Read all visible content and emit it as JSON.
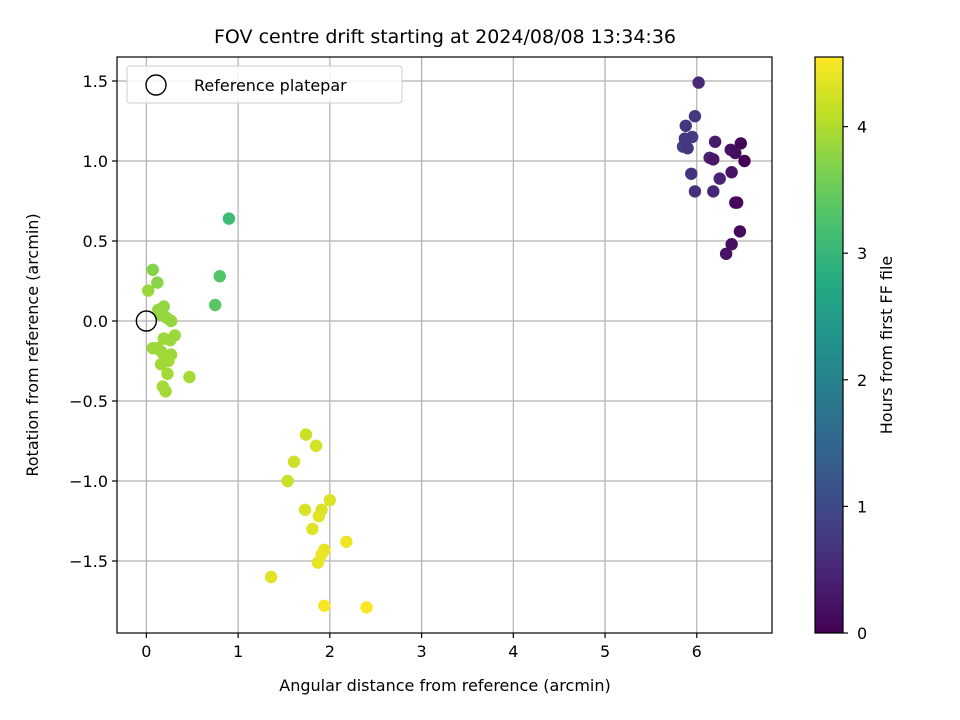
{
  "chart_data": {
    "type": "scatter",
    "title": "FOV centre drift starting at 2024/08/08 13:34:36",
    "xlabel": "Angular distance from reference (arcmin)",
    "ylabel": "Rotation from reference (arcmin)",
    "xlim": [
      -0.32,
      6.82
    ],
    "ylim": [
      -1.95,
      1.65
    ],
    "xticks": [
      0,
      1,
      2,
      3,
      4,
      5,
      6
    ],
    "xtick_labels": [
      "0",
      "1",
      "2",
      "3",
      "4",
      "5",
      "6"
    ],
    "yticks": [
      -1.5,
      -1.0,
      -0.5,
      0.0,
      0.5,
      1.0,
      1.5
    ],
    "ytick_labels": [
      "−1.5",
      "−1.0",
      "−0.5",
      "0.0",
      "0.5",
      "1.0",
      "1.5"
    ],
    "grid": true,
    "legend": {
      "placement": "upper-left",
      "entries": [
        "Reference platepar"
      ]
    },
    "reference_point": {
      "x": 0.0,
      "y": 0.0,
      "name": "Reference platepar"
    },
    "colorbar": {
      "label": "Hours from first FF file",
      "min": 0,
      "max": 4.55,
      "ticks": [
        0,
        1,
        2,
        3,
        4
      ],
      "tick_labels": [
        "0",
        "1",
        "2",
        "3",
        "4"
      ],
      "colormap": "viridis"
    },
    "points": [
      {
        "x": 6.02,
        "y": 1.49,
        "h": 0.55
      },
      {
        "x": 5.98,
        "y": 1.28,
        "h": 0.75
      },
      {
        "x": 5.88,
        "y": 1.22,
        "h": 0.7
      },
      {
        "x": 5.95,
        "y": 1.15,
        "h": 0.8
      },
      {
        "x": 5.87,
        "y": 1.14,
        "h": 0.75
      },
      {
        "x": 5.85,
        "y": 1.09,
        "h": 0.85
      },
      {
        "x": 5.9,
        "y": 1.08,
        "h": 0.72
      },
      {
        "x": 6.2,
        "y": 1.12,
        "h": 0.35
      },
      {
        "x": 6.48,
        "y": 1.11,
        "h": 0.05
      },
      {
        "x": 6.37,
        "y": 1.07,
        "h": 0.2
      },
      {
        "x": 6.42,
        "y": 1.05,
        "h": 0.15
      },
      {
        "x": 6.14,
        "y": 1.02,
        "h": 0.4
      },
      {
        "x": 6.18,
        "y": 1.01,
        "h": 0.3
      },
      {
        "x": 6.52,
        "y": 1.0,
        "h": 0.0
      },
      {
        "x": 6.38,
        "y": 0.93,
        "h": 0.25
      },
      {
        "x": 5.94,
        "y": 0.92,
        "h": 0.65
      },
      {
        "x": 6.25,
        "y": 0.89,
        "h": 0.45
      },
      {
        "x": 6.18,
        "y": 0.81,
        "h": 0.5
      },
      {
        "x": 5.98,
        "y": 0.81,
        "h": 0.6
      },
      {
        "x": 6.42,
        "y": 0.74,
        "h": 0.1
      },
      {
        "x": 6.44,
        "y": 0.74,
        "h": 0.08
      },
      {
        "x": 6.47,
        "y": 0.56,
        "h": 0.12
      },
      {
        "x": 6.38,
        "y": 0.48,
        "h": 0.18
      },
      {
        "x": 6.32,
        "y": 0.42,
        "h": 0.22
      },
      {
        "x": 0.9,
        "y": 0.64,
        "h": 3.1
      },
      {
        "x": 0.8,
        "y": 0.28,
        "h": 3.3
      },
      {
        "x": 0.75,
        "y": 0.1,
        "h": 3.35
      },
      {
        "x": 0.07,
        "y": 0.32,
        "h": 3.7
      },
      {
        "x": 0.12,
        "y": 0.24,
        "h": 3.75
      },
      {
        "x": 0.02,
        "y": 0.19,
        "h": 3.85
      },
      {
        "x": 0.13,
        "y": 0.07,
        "h": 3.8
      },
      {
        "x": 0.19,
        "y": 0.09,
        "h": 3.8
      },
      {
        "x": 0.15,
        "y": 0.04,
        "h": 3.82
      },
      {
        "x": 0.22,
        "y": 0.02,
        "h": 3.83
      },
      {
        "x": 0.27,
        "y": 0.0,
        "h": 3.84
      },
      {
        "x": 0.19,
        "y": -0.11,
        "h": 3.86
      },
      {
        "x": 0.31,
        "y": -0.09,
        "h": 3.86
      },
      {
        "x": 0.26,
        "y": -0.12,
        "h": 3.87
      },
      {
        "x": 0.07,
        "y": -0.17,
        "h": 3.87
      },
      {
        "x": 0.12,
        "y": -0.17,
        "h": 3.88
      },
      {
        "x": 0.16,
        "y": -0.19,
        "h": 3.88
      },
      {
        "x": 0.27,
        "y": -0.21,
        "h": 3.89
      },
      {
        "x": 0.2,
        "y": -0.24,
        "h": 3.9
      },
      {
        "x": 0.16,
        "y": -0.27,
        "h": 3.9
      },
      {
        "x": 0.24,
        "y": -0.25,
        "h": 3.91
      },
      {
        "x": 0.23,
        "y": -0.33,
        "h": 3.91
      },
      {
        "x": 0.47,
        "y": -0.35,
        "h": 3.92
      },
      {
        "x": 0.18,
        "y": -0.41,
        "h": 3.93
      },
      {
        "x": 0.21,
        "y": -0.44,
        "h": 3.93
      },
      {
        "x": 1.74,
        "y": -0.71,
        "h": 4.2
      },
      {
        "x": 1.85,
        "y": -0.78,
        "h": 4.25
      },
      {
        "x": 1.61,
        "y": -0.88,
        "h": 4.22
      },
      {
        "x": 1.54,
        "y": -1.0,
        "h": 4.18
      },
      {
        "x": 1.73,
        "y": -1.18,
        "h": 4.28
      },
      {
        "x": 1.91,
        "y": -1.18,
        "h": 4.3
      },
      {
        "x": 2.0,
        "y": -1.12,
        "h": 4.3
      },
      {
        "x": 1.88,
        "y": -1.22,
        "h": 4.35
      },
      {
        "x": 1.81,
        "y": -1.3,
        "h": 4.32
      },
      {
        "x": 2.18,
        "y": -1.38,
        "h": 4.45
      },
      {
        "x": 1.94,
        "y": -1.43,
        "h": 4.4
      },
      {
        "x": 1.91,
        "y": -1.46,
        "h": 4.42
      },
      {
        "x": 1.87,
        "y": -1.51,
        "h": 4.4
      },
      {
        "x": 1.36,
        "y": -1.6,
        "h": 4.35
      },
      {
        "x": 1.94,
        "y": -1.78,
        "h": 4.5
      },
      {
        "x": 2.4,
        "y": -1.79,
        "h": 4.55
      }
    ]
  }
}
